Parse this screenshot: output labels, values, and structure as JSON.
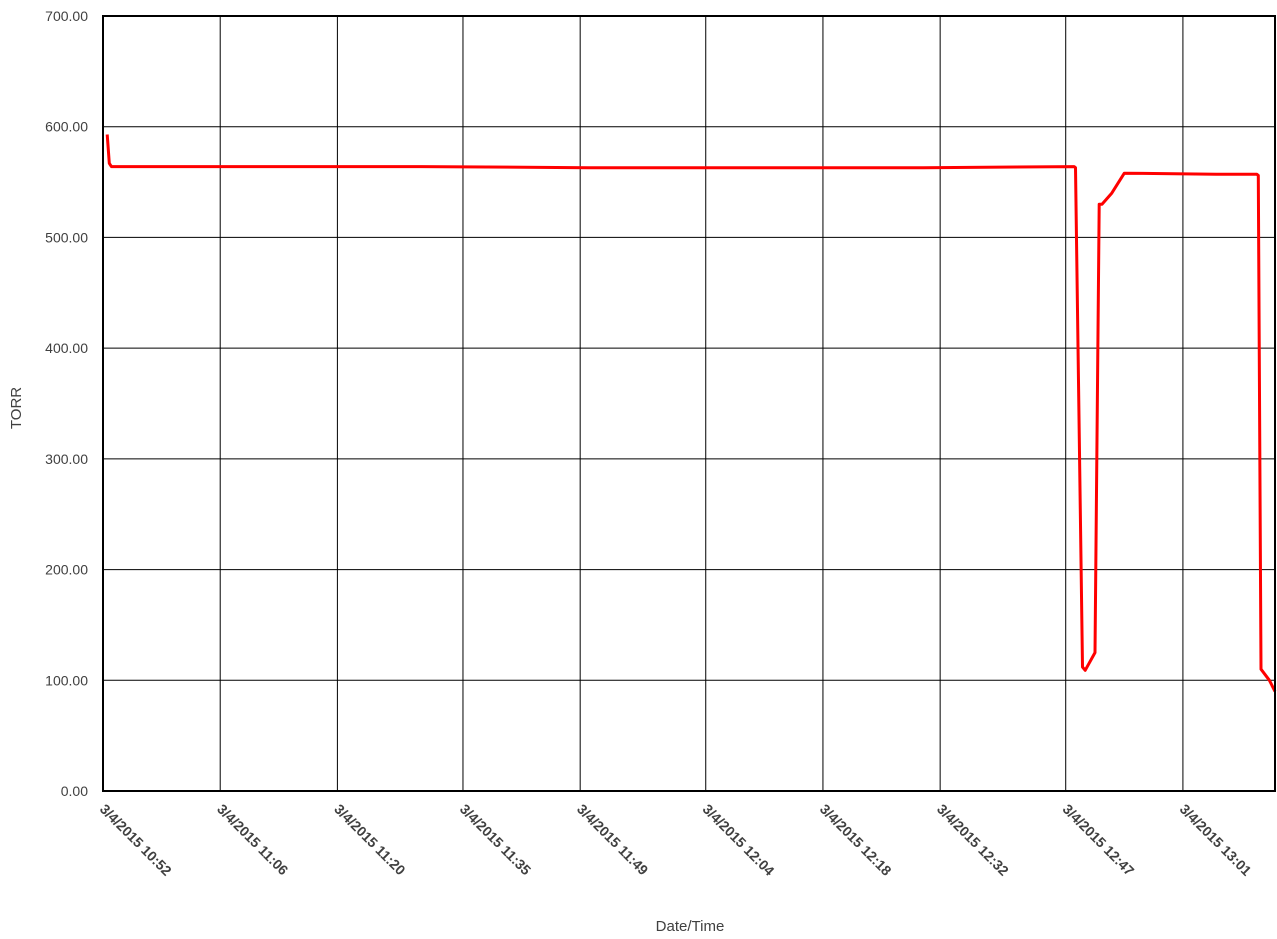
{
  "chart_data": {
    "type": "line",
    "title": "",
    "xlabel": "Date/Time",
    "ylabel": "TORR",
    "ylim": [
      0,
      700
    ],
    "y_ticks": [
      "0.00",
      "100.00",
      "200.00",
      "300.00",
      "400.00",
      "500.00",
      "600.00",
      "700.00"
    ],
    "x_tick_labels": [
      "3/4/2015 10:52",
      "3/4/2015 11:06",
      "3/4/2015 11:20",
      "3/4/2015 11:35",
      "3/4/2015 11:49",
      "3/4/2015 12:04",
      "3/4/2015 12:18",
      "3/4/2015 12:32",
      "3/4/2015 12:47",
      "3/4/2015 13:01"
    ],
    "x_range": [
      "2015-03-04 10:52",
      "2015-03-04 13:12"
    ],
    "grid": true,
    "line_color": "#ff0000",
    "series": [
      {
        "x": [
          "2015-03-04 10:52:30",
          "2015-03-04 10:52:45",
          "2015-03-04 10:53:00",
          "2015-03-04 11:10:00",
          "2015-03-04 11:30:00",
          "2015-03-04 11:50:00",
          "2015-03-04 12:10:00",
          "2015-03-04 12:30:00",
          "2015-03-04 12:48:00",
          "2015-03-04 12:48:10",
          "2015-03-04 12:49:00",
          "2015-03-04 12:49:20",
          "2015-03-04 12:50:30",
          "2015-03-04 12:51:00",
          "2015-03-04 12:51:20",
          "2015-03-04 12:52:30",
          "2015-03-04 12:54:00",
          "2015-03-04 13:05:00",
          "2015-03-04 13:09:50",
          "2015-03-04 13:10:00",
          "2015-03-04 13:10:20",
          "2015-03-04 13:11:20",
          "2015-03-04 13:12:00"
        ],
        "y": [
          593,
          567,
          564,
          564,
          564,
          563,
          563,
          563,
          564,
          563,
          112,
          109,
          125,
          530,
          530,
          540,
          558,
          557,
          557,
          556,
          110,
          100,
          90
        ]
      }
    ]
  }
}
